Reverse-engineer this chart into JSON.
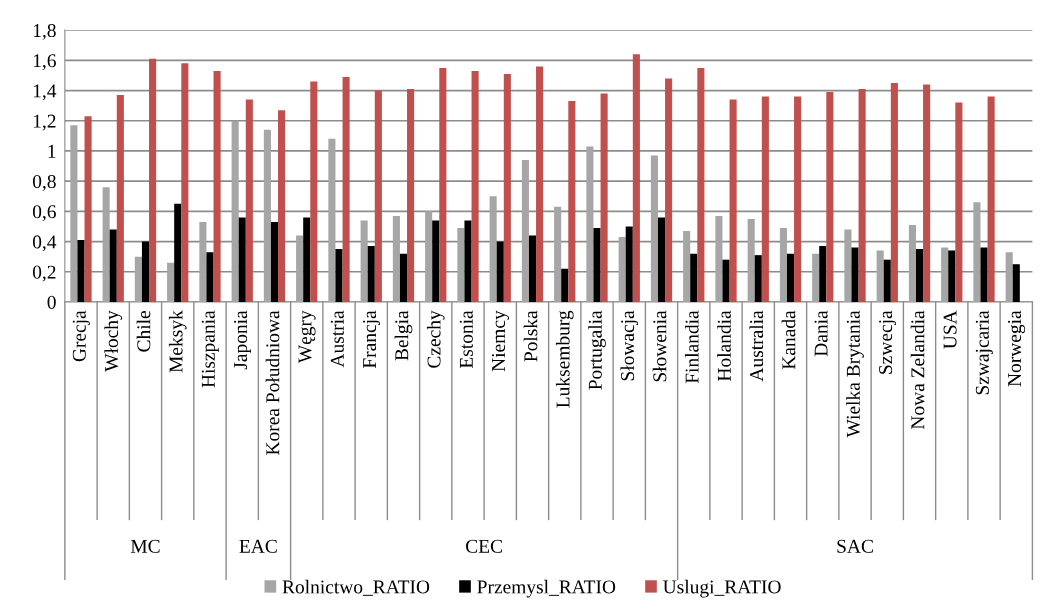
{
  "chart_data": {
    "type": "bar",
    "categories": [
      "Grecja",
      "Włochy",
      "Chile",
      "Meksyk",
      "Hiszpania",
      "Japonia",
      "Korea Południowa",
      "Węgry",
      "Austria",
      "Francja",
      "Belgia",
      "Czechy",
      "Estonia",
      "Niemcy",
      "Polska",
      "Luksemburg",
      "Portugalia",
      "Słowacja",
      "Słowenia",
      "Finlandia",
      "Holandia",
      "Australia",
      "Kanada",
      "Dania",
      "Wielka Brytania",
      "Szwecja",
      "Nowa Zelandia",
      "USA",
      "Szwajcaria",
      "Norwegia"
    ],
    "series": [
      {
        "name": "Rolnictwo_RATIO",
        "color": "#a6a6a6",
        "values": [
          1.17,
          0.76,
          0.3,
          0.26,
          0.53,
          1.2,
          1.14,
          0.44,
          1.08,
          0.54,
          0.57,
          0.6,
          0.49,
          0.7,
          0.94,
          0.63,
          1.03,
          0.43,
          0.97,
          0.47,
          0.57,
          0.55,
          0.49,
          0.32,
          0.48,
          0.34,
          0.51,
          0.36,
          0.66,
          0.33
        ]
      },
      {
        "name": "Przemysl_RATIO",
        "color": "#000000",
        "values": [
          0.41,
          0.48,
          0.4,
          0.65,
          0.33,
          0.56,
          0.53,
          0.56,
          0.35,
          0.37,
          0.32,
          0.54,
          0.54,
          0.4,
          0.44,
          0.22,
          0.49,
          0.5,
          0.56,
          0.32,
          0.28,
          0.31,
          0.32,
          0.37,
          0.36,
          0.28,
          0.35,
          0.34,
          0.36,
          0.25
        ]
      },
      {
        "name": "Uslugi_RATIO",
        "color": "#c0504d",
        "values": [
          1.23,
          1.37,
          1.61,
          1.58,
          1.53,
          1.34,
          1.27,
          1.46,
          1.49,
          1.4,
          1.41,
          1.55,
          1.53,
          1.51,
          1.56,
          1.33,
          1.38,
          1.64,
          1.48,
          1.55,
          1.34,
          1.36,
          1.36,
          1.39,
          1.41,
          1.45,
          1.44,
          1.32,
          1.36,
          null
        ]
      }
    ],
    "annotations": [
      "MC",
      "EAC",
      "CEC",
      "SAC"
    ],
    "ylim": [
      0,
      1.8
    ],
    "yticks": [
      0,
      {
        "value": 0.2,
        "label": "0,2"
      },
      {
        "value": 0.4,
        "label": "0,4"
      },
      {
        "value": 0.6,
        "label": "0,6"
      },
      {
        "value": 0.8,
        "label": "0,8"
      },
      1,
      {
        "value": 1.2,
        "label": "1,2"
      },
      {
        "value": 1.4,
        "label": "1,4"
      },
      {
        "value": 1.6,
        "label": "1,6"
      },
      {
        "value": 1.8,
        "label": "1,8"
      }
    ],
    "grid": "y",
    "legend": "bottom"
  }
}
